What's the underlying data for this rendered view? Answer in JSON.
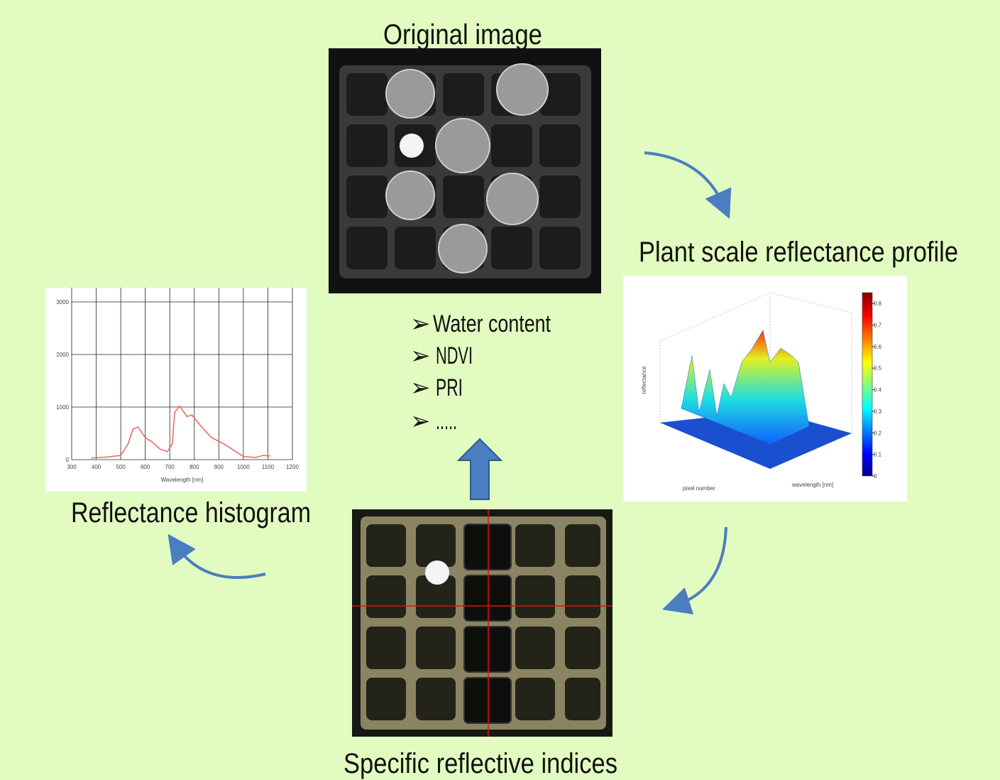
{
  "nodes": [
    {
      "label": "Original  image"
    },
    {
      "label": "Plant scale reflectance profile"
    },
    {
      "label": "Specific reflective indices"
    },
    {
      "label": "Reflectance histogram"
    }
  ],
  "indices": [
    "Water content",
    "NDVI",
    "PRI",
    "....."
  ],
  "histogram": {
    "type": "line",
    "xlabel": "Wavelength [nm]",
    "xlim": [
      300,
      1200
    ],
    "ylim": [
      0,
      3000
    ],
    "xticks": [
      300,
      400,
      500,
      600,
      700,
      800,
      900,
      1000,
      1100,
      1200
    ],
    "yticks": [
      0,
      1000,
      2000,
      3000
    ],
    "x": [
      380,
      450,
      500,
      530,
      550,
      570,
      600,
      630,
      660,
      690,
      710,
      720,
      740,
      770,
      790,
      830,
      870,
      920,
      970,
      1000,
      1050,
      1080,
      1110
    ],
    "values": [
      30,
      50,
      80,
      300,
      580,
      620,
      420,
      330,
      200,
      150,
      300,
      900,
      1020,
      820,
      850,
      620,
      420,
      300,
      150,
      60,
      40,
      80,
      70
    ],
    "color": "#f06060"
  },
  "profile": {
    "zlabel": "reflectance",
    "xlabel": "pixel number",
    "ylabel": "wavelength [nm]",
    "cticks": [
      0,
      0.1,
      0.2,
      0.3,
      0.4,
      0.5,
      0.6,
      0.7,
      0.8
    ],
    "clim": [
      0,
      0.85
    ]
  }
}
